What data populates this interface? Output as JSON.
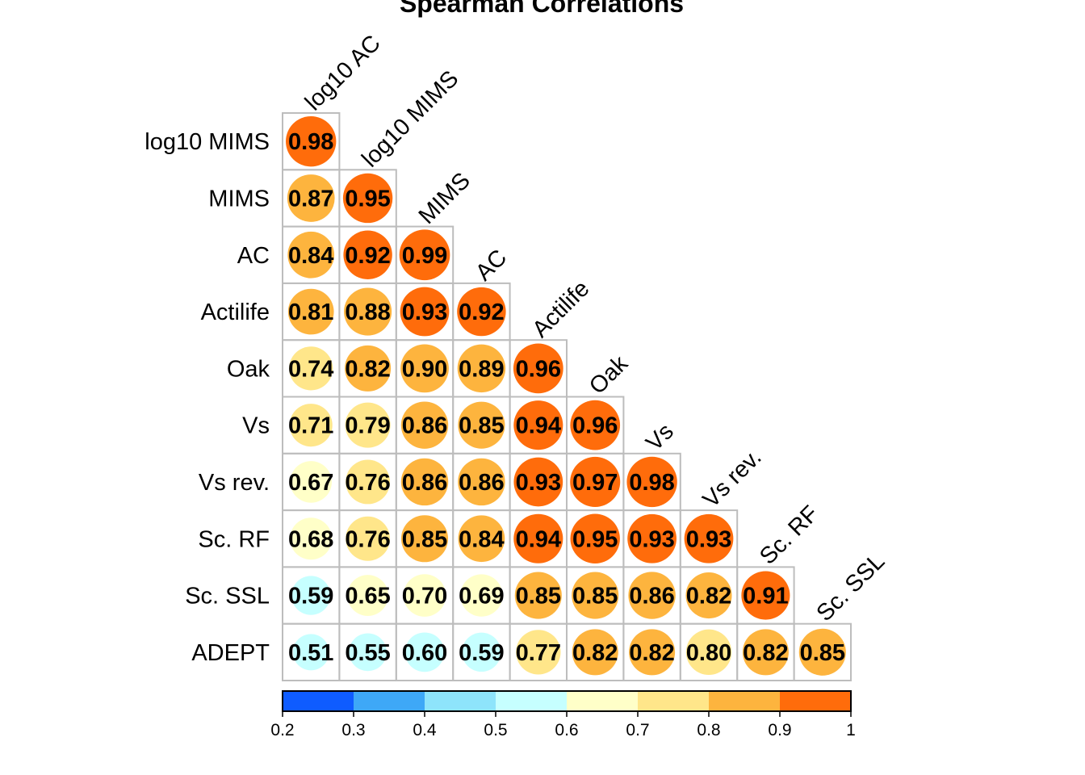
{
  "chart_data": {
    "type": "heatmap",
    "title": "Spearman Correlations",
    "row_labels": [
      "log10 MIMS",
      "MIMS",
      "AC",
      "Actilife",
      "Oak",
      "Vs",
      "Vs rev.",
      "Sc. RF",
      "Sc. SSL",
      "ADEPT"
    ],
    "col_labels": [
      "log10 AC",
      "log10 MIMS",
      "MIMS",
      "AC",
      "Actilife",
      "Oak",
      "Vs",
      "Vs rev.",
      "Sc. RF",
      "Sc. SSL"
    ],
    "values": [
      [
        0.98
      ],
      [
        0.87,
        0.95
      ],
      [
        0.84,
        0.92,
        0.99
      ],
      [
        0.81,
        0.88,
        0.93,
        0.92
      ],
      [
        0.74,
        0.82,
        0.9,
        0.89,
        0.96
      ],
      [
        0.71,
        0.79,
        0.86,
        0.85,
        0.94,
        0.96
      ],
      [
        0.67,
        0.76,
        0.86,
        0.86,
        0.93,
        0.97,
        0.98
      ],
      [
        0.68,
        0.76,
        0.85,
        0.84,
        0.94,
        0.95,
        0.93,
        0.93
      ],
      [
        0.59,
        0.65,
        0.7,
        0.69,
        0.85,
        0.85,
        0.86,
        0.82,
        0.91
      ],
      [
        0.51,
        0.55,
        0.6,
        0.59,
        0.77,
        0.82,
        0.82,
        0.8,
        0.82,
        0.85
      ]
    ],
    "value_labels": [
      [
        "0.98"
      ],
      [
        "0.87",
        "0.95"
      ],
      [
        "0.84",
        "0.92",
        "0.99"
      ],
      [
        "0.81",
        "0.88",
        "0.93",
        "0.92"
      ],
      [
        "0.74",
        "0.82",
        "0.90",
        "0.89",
        "0.96"
      ],
      [
        "0.71",
        "0.79",
        "0.86",
        "0.85",
        "0.94",
        "0.96"
      ],
      [
        "0.67",
        "0.76",
        "0.86",
        "0.86",
        "0.93",
        "0.97",
        "0.98"
      ],
      [
        "0.68",
        "0.76",
        "0.85",
        "0.84",
        "0.94",
        "0.95",
        "0.93",
        "0.93"
      ],
      [
        "0.59",
        "0.65",
        "0.70",
        "0.69",
        "0.85",
        "0.85",
        "0.86",
        "0.82",
        "0.91"
      ],
      [
        "0.51",
        "0.55",
        "0.60",
        "0.59",
        "0.77",
        "0.82",
        "0.82",
        "0.80",
        "0.82",
        "0.85"
      ]
    ],
    "color_scale": {
      "breaks": [
        0.2,
        0.3,
        0.4,
        0.5,
        0.6,
        0.7,
        0.8,
        0.9,
        1.0
      ],
      "colors": [
        "#0f5cff",
        "#3ea8f7",
        "#8ee4fb",
        "#c6ffff",
        "#ffffc8",
        "#ffe68a",
        "#fdb43e",
        "#ff6c0b"
      ],
      "tick_labels": [
        "0.2",
        "0.3",
        "0.4",
        "0.5",
        "0.6",
        "0.7",
        "0.8",
        "0.9",
        "1"
      ]
    },
    "legend_placement": "bottom"
  }
}
